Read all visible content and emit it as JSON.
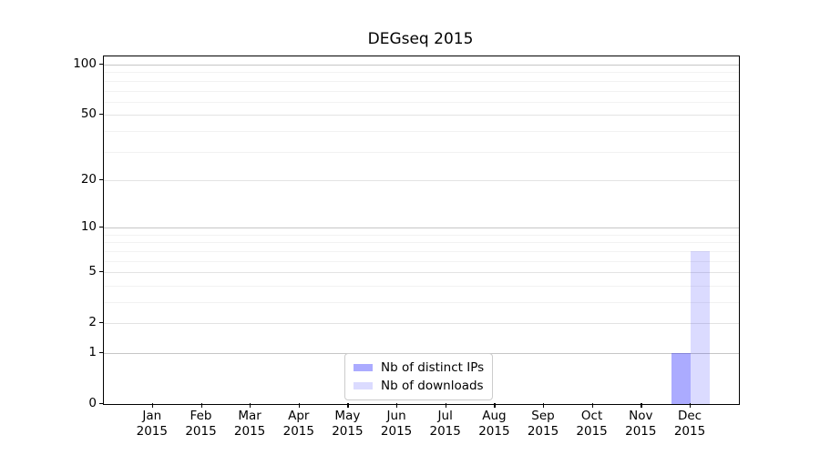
{
  "chart_data": {
    "type": "bar",
    "title": "DEGseq 2015",
    "x_year_label": "2015",
    "categories": [
      "Jan",
      "Feb",
      "Mar",
      "Apr",
      "May",
      "Jun",
      "Jul",
      "Aug",
      "Sep",
      "Oct",
      "Nov",
      "Dec"
    ],
    "series": [
      {
        "name": "Nb of distinct IPs",
        "color": "rgba(0,0,255,0.33)",
        "color_hex_on_white": "#aaaaf8",
        "values": [
          0,
          0,
          0,
          0,
          0,
          0,
          0,
          0,
          0,
          0,
          0,
          1
        ]
      },
      {
        "name": "Nb of downloads",
        "color": "rgba(0,0,255,0.14)",
        "color_hex_on_white": "#dbdbfa",
        "values": [
          0,
          0,
          0,
          0,
          0,
          0,
          0,
          0,
          0,
          0,
          0,
          7
        ]
      }
    ],
    "yscale": "log1p",
    "yticks": [
      0,
      1,
      2,
      5,
      10,
      20,
      50,
      100
    ],
    "ylim": [
      0,
      112
    ],
    "grid": {
      "decade_lines": [
        1,
        10,
        100
      ],
      "mid_lines": [
        2,
        5,
        20,
        50
      ],
      "minor_lines": [
        3,
        4,
        6,
        7,
        8,
        9,
        30,
        40,
        60,
        70,
        80,
        90
      ]
    },
    "legend_position": "lower center",
    "legend_entries": [
      "Nb of distinct IPs",
      "Nb of downloads"
    ]
  },
  "colors": {
    "axis": "#000000",
    "grid_decade": "#c6c6c6",
    "grid_mid": "#e3e3e3",
    "grid_minor": "#f2f2f2",
    "legend_border": "#cccccc",
    "background": "#ffffff"
  }
}
